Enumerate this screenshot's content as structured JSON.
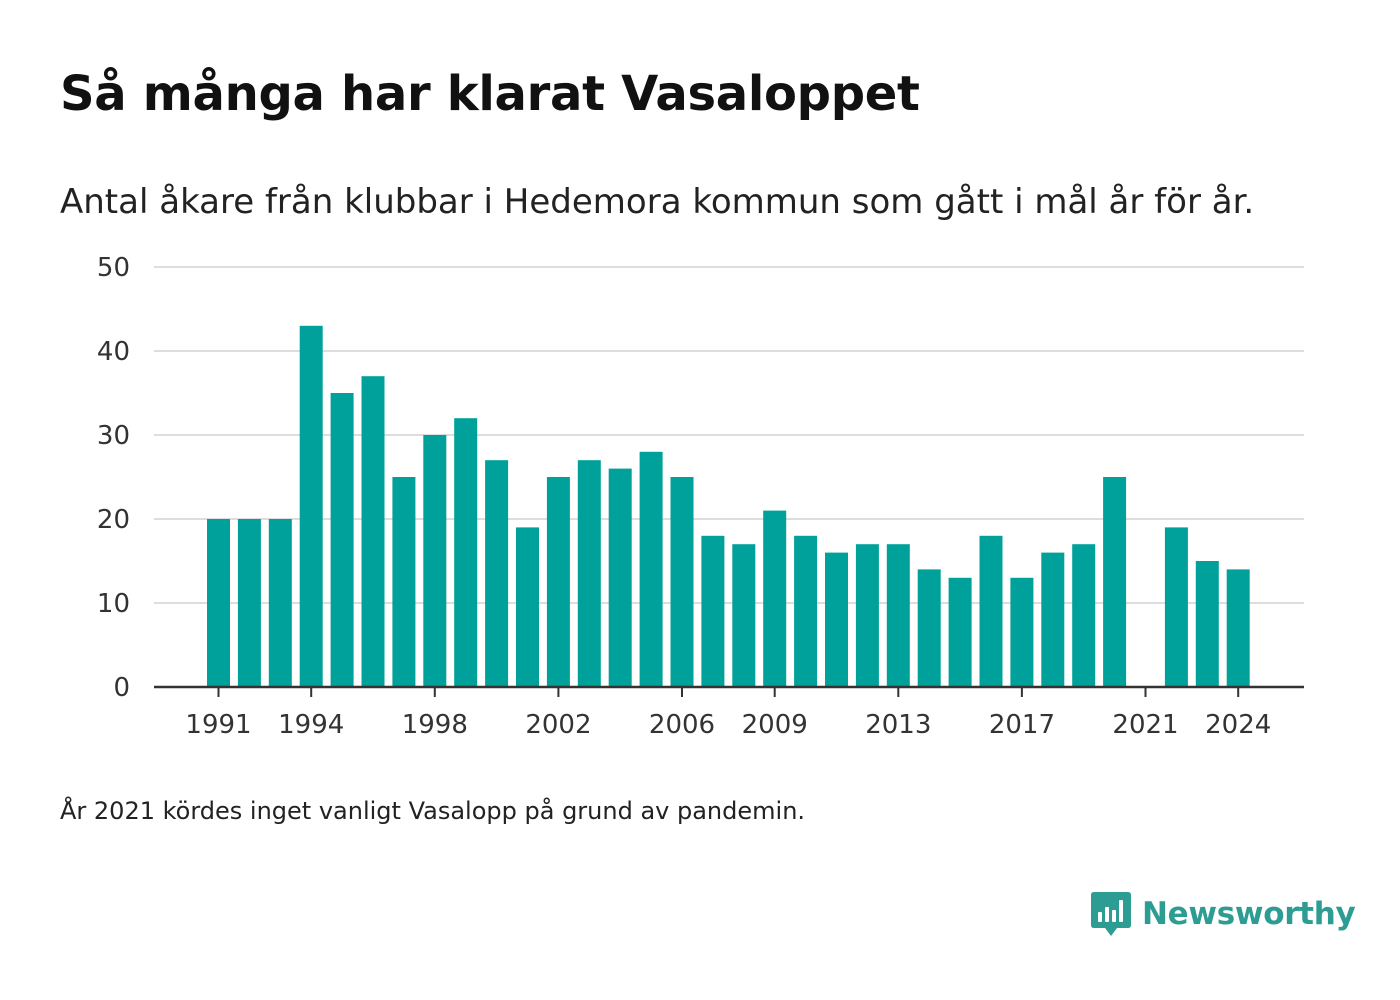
{
  "header": {
    "title": "Så många har klarat Vasaloppet",
    "subtitle": "Antal åkare från klubbar i Hedemora kommun som gått i mål år för år."
  },
  "footer": {
    "note": "År 2021 kördes inget vanligt Vasalopp på grund av pandemin.",
    "brand": "Newsworthy",
    "brand_icon": "bar-chart-badge-icon"
  },
  "colors": {
    "bar": "#00a19a",
    "grid": "#dddddd",
    "axis": "#333333",
    "brand": "#2d9c92"
  },
  "chart_data": {
    "type": "bar",
    "title": "Så många har klarat Vasaloppet",
    "subtitle": "Antal åkare från klubbar i Hedemora kommun som gått i mål år för år.",
    "categories": [
      1991,
      1992,
      1993,
      1994,
      1995,
      1996,
      1997,
      1998,
      1999,
      2000,
      2001,
      2002,
      2003,
      2004,
      2005,
      2006,
      2007,
      2008,
      2009,
      2010,
      2011,
      2012,
      2013,
      2014,
      2015,
      2016,
      2017,
      2018,
      2019,
      2020,
      2021,
      2022,
      2023,
      2024
    ],
    "values": [
      20,
      20,
      20,
      43,
      35,
      37,
      25,
      30,
      32,
      27,
      19,
      25,
      27,
      26,
      28,
      25,
      18,
      17,
      21,
      18,
      16,
      17,
      17,
      14,
      13,
      18,
      13,
      16,
      17,
      25,
      null,
      19,
      15,
      14
    ],
    "xticks": [
      1991,
      1994,
      1998,
      2002,
      2006,
      2009,
      2013,
      2017,
      2021,
      2024
    ],
    "yticks": [
      0,
      10,
      20,
      30,
      40,
      50
    ],
    "ylim": [
      0,
      50
    ],
    "xlabel": "",
    "ylabel": "",
    "grid": true,
    "legend": "none"
  }
}
